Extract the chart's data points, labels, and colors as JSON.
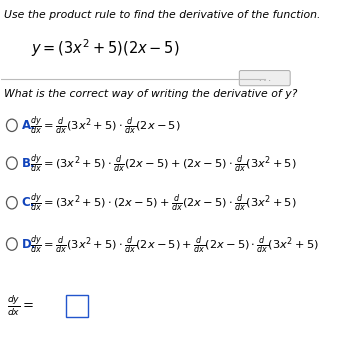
{
  "bg_color": "#ffffff",
  "title_text": "Use the product rule to find the derivative of the function.",
  "function_text": "$y = \\left(3x^2+5\\right)(2x-5)$",
  "question_text": "What is the correct way of writing the derivative of y?",
  "label_A": "A.",
  "label_B": "B.",
  "label_C": "C.",
  "label_D": "D.",
  "option_A": "$\\frac{dy}{dx} = \\frac{d}{dx}\\left(3x^2+5\\right) \\cdot \\frac{d}{dx}(2x-5)$",
  "option_B": "$\\frac{dy}{dx} = \\left(3x^2+5\\right) \\cdot \\frac{d}{dx}(2x-5) + (2x-5) \\cdot \\frac{d}{dx}\\left(3x^2+5\\right)$",
  "option_C": "$\\frac{dy}{dx} = \\left(3x^2+5\\right) \\cdot (2x-5) + \\frac{d}{dx}(2x-5) \\cdot \\frac{d}{dx}\\left(3x^2+5\\right)$",
  "option_D": "$\\frac{dy}{dx} = \\frac{d}{dx}\\left(3x^2+5\\right) \\cdot \\frac{d}{dx}(2x-5) + \\frac{d}{dx}(2x-5) \\cdot \\frac{d}{dx}\\left(3x^2+5\\right)$",
  "bottom_expr": "$\\frac{dy}{dx} =$",
  "text_color": "#000000",
  "radio_color": "#555555",
  "label_color": "#1144bb",
  "line_color": "#bbbbbb",
  "dot_color": "#666666",
  "figsize": [
    3.5,
    3.47
  ],
  "dpi": 100
}
